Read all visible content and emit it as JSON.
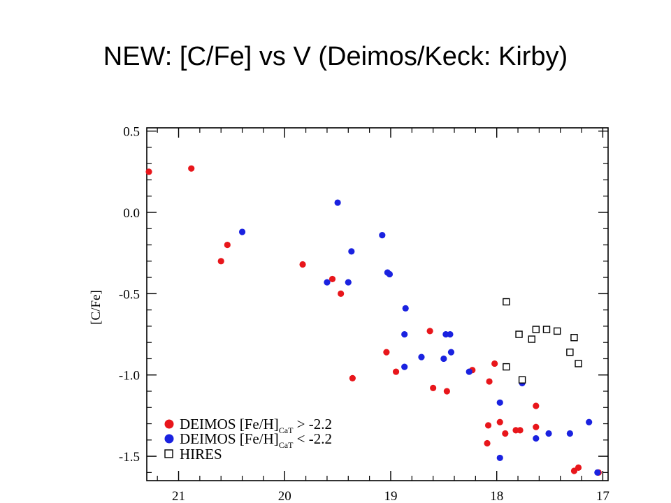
{
  "slide": {
    "title": "NEW: [C/Fe] vs V (Deimos/Keck: Kirby)"
  },
  "chart_data": {
    "type": "scatter",
    "title": "",
    "xlabel": "",
    "ylabel": "[C/Fe]",
    "xlim": [
      21.3,
      16.95
    ],
    "ylim": [
      -1.65,
      0.52
    ],
    "x_ticks": [
      "21",
      "20",
      "19",
      "18",
      "17"
    ],
    "x_tick_values": [
      21,
      20,
      19,
      18,
      17
    ],
    "y_ticks": [
      "0.5",
      "0.0",
      "-0.5",
      "-1.0",
      "-1.5"
    ],
    "y_tick_values": [
      0.5,
      0.0,
      -0.5,
      -1.0,
      -1.5
    ],
    "legend_position": "bottom-left",
    "series": [
      {
        "name_main": "DEIMOS [Fe/H]",
        "name_sub": "CaT",
        "name_rel": " > -2.2",
        "color": "#e8161b",
        "marker": "filled-circle",
        "points": [
          [
            21.28,
            0.25
          ],
          [
            20.88,
            0.27
          ],
          [
            20.6,
            -0.3
          ],
          [
            20.54,
            -0.2
          ],
          [
            19.83,
            -0.32
          ],
          [
            19.55,
            -0.41
          ],
          [
            19.47,
            -0.5
          ],
          [
            19.36,
            -1.02
          ],
          [
            19.04,
            -0.86
          ],
          [
            18.95,
            -0.98
          ],
          [
            18.63,
            -0.73
          ],
          [
            18.6,
            -1.08
          ],
          [
            18.47,
            -1.1
          ],
          [
            18.23,
            -0.97
          ],
          [
            18.07,
            -1.04
          ],
          [
            18.08,
            -1.31
          ],
          [
            18.02,
            -0.93
          ],
          [
            18.09,
            -1.42
          ],
          [
            17.97,
            -1.29
          ],
          [
            17.92,
            -1.36
          ],
          [
            17.82,
            -1.34
          ],
          [
            17.78,
            -1.34
          ],
          [
            17.63,
            -1.19
          ],
          [
            17.63,
            -1.32
          ],
          [
            17.27,
            -1.59
          ],
          [
            17.23,
            -1.57
          ],
          [
            17.04,
            -1.6
          ]
        ]
      },
      {
        "name_main": "DEIMOS [Fe/H]",
        "name_sub": "CaT",
        "name_rel": " < -2.2",
        "color": "#1a22e0",
        "marker": "filled-circle",
        "points": [
          [
            20.4,
            -0.12
          ],
          [
            19.6,
            -0.43
          ],
          [
            19.5,
            0.06
          ],
          [
            19.4,
            -0.43
          ],
          [
            19.37,
            -0.24
          ],
          [
            19.08,
            -0.14
          ],
          [
            19.03,
            -0.37
          ],
          [
            19.01,
            -0.38
          ],
          [
            18.86,
            -0.59
          ],
          [
            18.87,
            -0.75
          ],
          [
            18.87,
            -0.95
          ],
          [
            18.71,
            -0.89
          ],
          [
            18.5,
            -0.9
          ],
          [
            18.48,
            -0.75
          ],
          [
            18.44,
            -0.75
          ],
          [
            18.43,
            -0.86
          ],
          [
            18.26,
            -0.98
          ],
          [
            17.97,
            -1.17
          ],
          [
            17.97,
            -1.51
          ],
          [
            17.76,
            -1.05
          ],
          [
            17.63,
            -1.39
          ],
          [
            17.51,
            -1.36
          ],
          [
            17.31,
            -1.36
          ],
          [
            17.13,
            -1.29
          ],
          [
            17.05,
            -1.6
          ]
        ]
      },
      {
        "name_main": "HIRES",
        "color": "#000000",
        "marker": "open-square",
        "points": [
          [
            17.91,
            -0.55
          ],
          [
            17.91,
            -0.95
          ],
          [
            17.79,
            -0.75
          ],
          [
            17.76,
            -1.03
          ],
          [
            17.67,
            -0.78
          ],
          [
            17.63,
            -0.72
          ],
          [
            17.53,
            -0.72
          ],
          [
            17.43,
            -0.73
          ],
          [
            17.31,
            -0.86
          ],
          [
            17.27,
            -0.77
          ],
          [
            17.23,
            -0.93
          ]
        ]
      }
    ]
  }
}
